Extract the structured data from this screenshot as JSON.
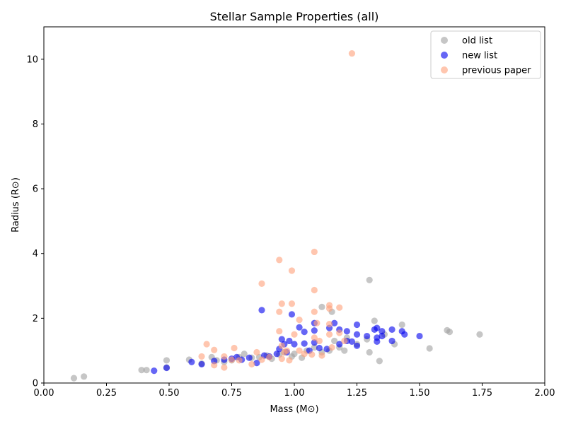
{
  "chart_data": {
    "type": "scatter",
    "title": "Stellar Sample Properties (all)",
    "xlabel": "Mass (M⊙)",
    "ylabel": "Radius (R⊙)",
    "xlim": [
      0,
      2
    ],
    "ylim": [
      0,
      11
    ],
    "x_ticks": [
      "0.00",
      "0.25",
      "0.50",
      "0.75",
      "1.00",
      "1.25",
      "1.50",
      "1.75",
      "2.00"
    ],
    "y_ticks": [
      "0",
      "2",
      "4",
      "6",
      "8",
      "10"
    ],
    "legend_position": "top-right",
    "grid": false,
    "series": [
      {
        "name": "old list",
        "color": "#a0a0a0",
        "points": [
          [
            0.12,
            0.15
          ],
          [
            0.16,
            0.2
          ],
          [
            0.39,
            0.4
          ],
          [
            0.41,
            0.4
          ],
          [
            0.49,
            0.7
          ],
          [
            0.49,
            0.48
          ],
          [
            0.58,
            0.72
          ],
          [
            0.63,
            0.6
          ],
          [
            0.67,
            0.8
          ],
          [
            0.69,
            0.7
          ],
          [
            0.72,
            0.65
          ],
          [
            0.75,
            0.7
          ],
          [
            0.78,
            0.8
          ],
          [
            0.8,
            0.9
          ],
          [
            0.83,
            0.78
          ],
          [
            0.86,
            0.8
          ],
          [
            0.89,
            0.85
          ],
          [
            0.91,
            0.75
          ],
          [
            0.94,
            0.88
          ],
          [
            0.96,
            0.95
          ],
          [
            0.99,
            0.82
          ],
          [
            1.0,
            0.9
          ],
          [
            1.03,
            0.78
          ],
          [
            1.05,
            1.0
          ],
          [
            1.08,
            1.1
          ],
          [
            1.11,
            0.95
          ],
          [
            1.11,
            2.35
          ],
          [
            1.14,
            1.0
          ],
          [
            1.15,
            2.2
          ],
          [
            1.16,
            1.3
          ],
          [
            1.18,
            1.1
          ],
          [
            1.2,
            1.0
          ],
          [
            1.21,
            1.4
          ],
          [
            1.25,
            1.2
          ],
          [
            1.29,
            1.35
          ],
          [
            1.3,
            0.95
          ],
          [
            1.3,
            3.18
          ],
          [
            1.32,
            1.92
          ],
          [
            1.34,
            0.68
          ],
          [
            1.36,
            1.5
          ],
          [
            1.4,
            1.2
          ],
          [
            1.43,
            1.8
          ],
          [
            1.54,
            1.07
          ],
          [
            1.61,
            1.63
          ],
          [
            1.62,
            1.58
          ],
          [
            1.74,
            1.5
          ]
        ]
      },
      {
        "name": "new list",
        "color": "#0000ee",
        "points": [
          [
            0.44,
            0.38
          ],
          [
            0.49,
            0.47
          ],
          [
            0.59,
            0.65
          ],
          [
            0.63,
            0.58
          ],
          [
            0.68,
            0.68
          ],
          [
            0.72,
            0.72
          ],
          [
            0.75,
            0.75
          ],
          [
            0.77,
            0.8
          ],
          [
            0.79,
            0.72
          ],
          [
            0.82,
            0.78
          ],
          [
            0.85,
            0.62
          ],
          [
            0.87,
            2.25
          ],
          [
            0.88,
            0.85
          ],
          [
            0.9,
            0.82
          ],
          [
            0.93,
            0.9
          ],
          [
            0.94,
            1.05
          ],
          [
            0.95,
            1.35
          ],
          [
            0.96,
            1.2
          ],
          [
            0.97,
            0.95
          ],
          [
            0.98,
            1.3
          ],
          [
            0.99,
            2.12
          ],
          [
            1.0,
            1.2
          ],
          [
            1.02,
            1.72
          ],
          [
            1.04,
            1.58
          ],
          [
            1.04,
            1.22
          ],
          [
            1.06,
            1.0
          ],
          [
            1.08,
            1.25
          ],
          [
            1.08,
            1.62
          ],
          [
            1.08,
            1.85
          ],
          [
            1.1,
            1.08
          ],
          [
            1.13,
            1.05
          ],
          [
            1.14,
            1.7
          ],
          [
            1.16,
            1.85
          ],
          [
            1.18,
            1.65
          ],
          [
            1.18,
            1.2
          ],
          [
            1.21,
            1.6
          ],
          [
            1.21,
            1.3
          ],
          [
            1.23,
            1.28
          ],
          [
            1.25,
            1.8
          ],
          [
            1.25,
            1.5
          ],
          [
            1.25,
            1.15
          ],
          [
            1.29,
            1.45
          ],
          [
            1.32,
            1.65
          ],
          [
            1.33,
            1.7
          ],
          [
            1.33,
            1.4
          ],
          [
            1.33,
            1.28
          ],
          [
            1.35,
            1.6
          ],
          [
            1.35,
            1.45
          ],
          [
            1.39,
            1.65
          ],
          [
            1.39,
            1.3
          ],
          [
            1.43,
            1.6
          ],
          [
            1.44,
            1.5
          ],
          [
            1.5,
            1.45
          ]
        ]
      },
      {
        "name": "previous paper",
        "color": "#ffa07a",
        "points": [
          [
            0.63,
            0.82
          ],
          [
            0.65,
            1.2
          ],
          [
            0.68,
            1.02
          ],
          [
            0.68,
            0.55
          ],
          [
            0.72,
            0.82
          ],
          [
            0.72,
            0.48
          ],
          [
            0.75,
            0.72
          ],
          [
            0.76,
            1.08
          ],
          [
            0.78,
            0.7
          ],
          [
            0.83,
            0.58
          ],
          [
            0.85,
            0.95
          ],
          [
            0.87,
            3.07
          ],
          [
            0.87,
            0.72
          ],
          [
            0.9,
            0.8
          ],
          [
            0.94,
            3.8
          ],
          [
            0.94,
            2.2
          ],
          [
            0.94,
            1.6
          ],
          [
            0.95,
            2.45
          ],
          [
            0.95,
            1.15
          ],
          [
            0.95,
            0.75
          ],
          [
            0.96,
            0.95
          ],
          [
            0.97,
            1.0
          ],
          [
            0.98,
            0.7
          ],
          [
            0.99,
            3.47
          ],
          [
            0.99,
            2.45
          ],
          [
            1.0,
            1.5
          ],
          [
            1.02,
            1.95
          ],
          [
            1.02,
            1.0
          ],
          [
            1.04,
            0.9
          ],
          [
            1.07,
            0.88
          ],
          [
            1.08,
            4.05
          ],
          [
            1.08,
            2.87
          ],
          [
            1.08,
            2.2
          ],
          [
            1.08,
            1.4
          ],
          [
            1.09,
            1.85
          ],
          [
            1.1,
            1.3
          ],
          [
            1.11,
            0.85
          ],
          [
            1.14,
            2.4
          ],
          [
            1.14,
            2.3
          ],
          [
            1.14,
            1.82
          ],
          [
            1.14,
            1.5
          ],
          [
            1.15,
            1.1
          ],
          [
            1.18,
            2.33
          ],
          [
            1.18,
            1.55
          ],
          [
            1.2,
            1.3
          ],
          [
            1.23,
            10.18
          ]
        ]
      }
    ]
  }
}
